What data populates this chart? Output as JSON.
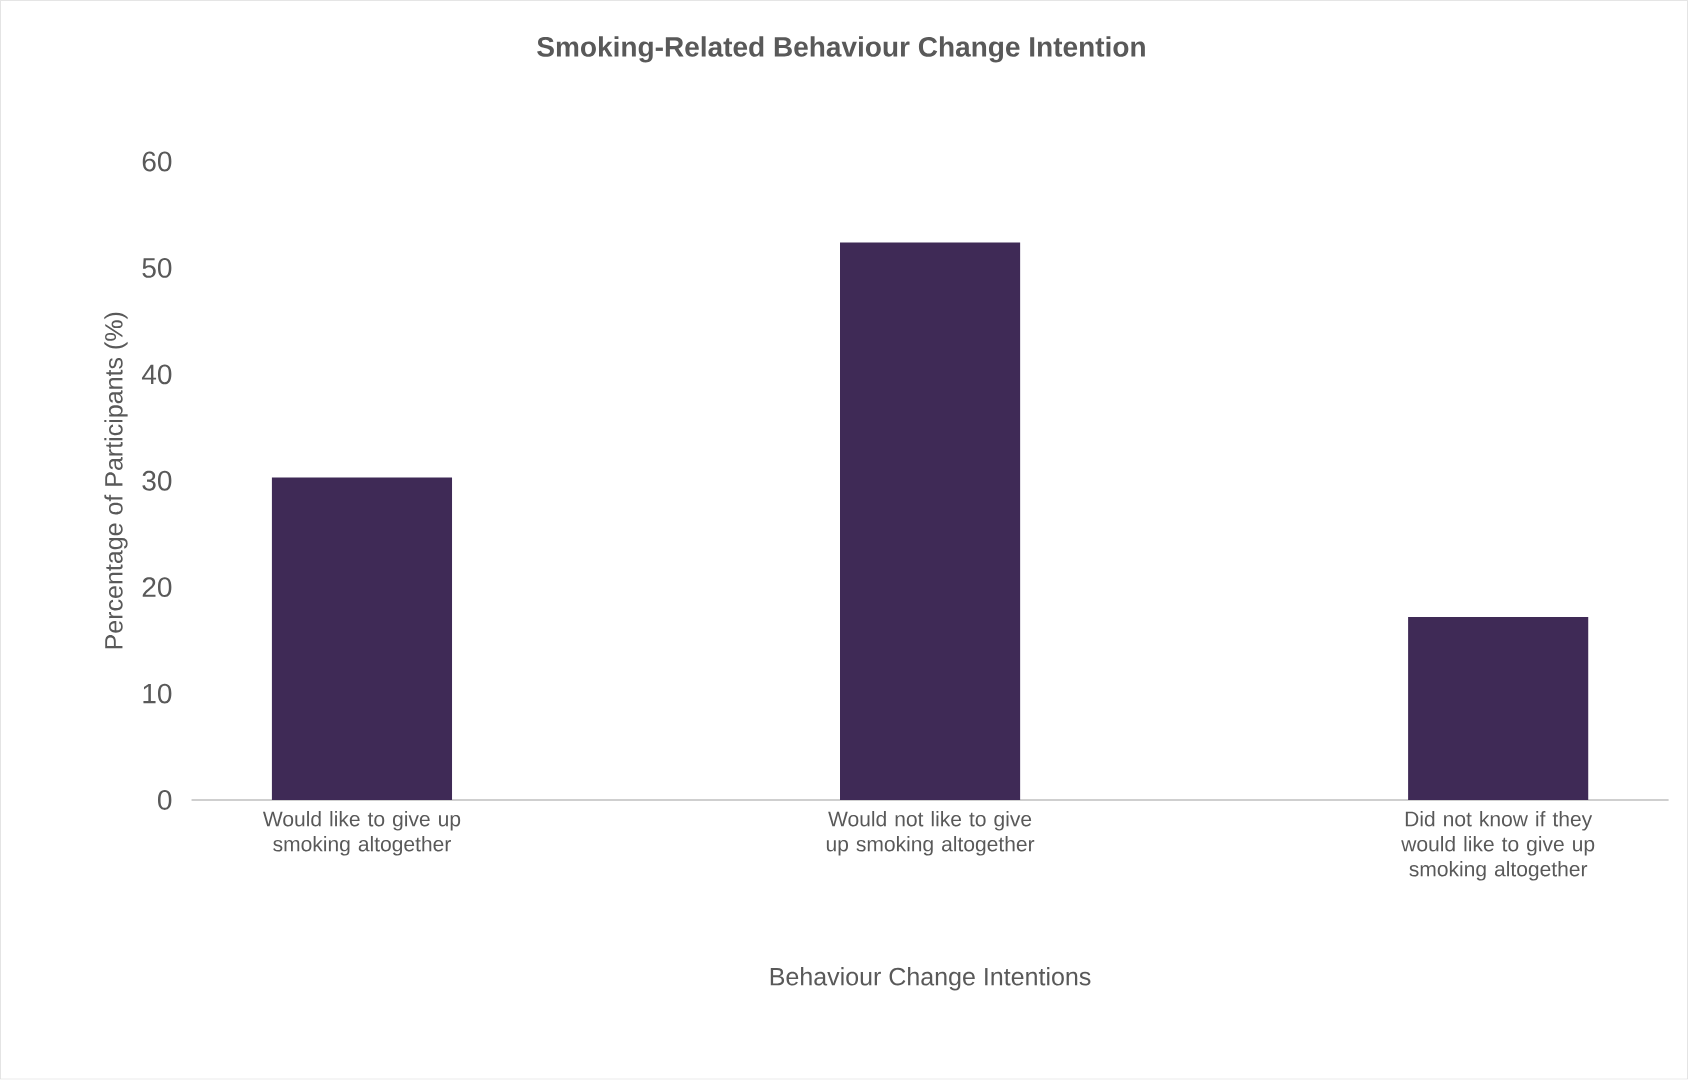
{
  "chart_data": {
    "type": "bar",
    "title": "Smoking-Related Behaviour Change Intention",
    "xlabel": "Behaviour Change Intentions",
    "ylabel": "Percentage of Participants (%)",
    "categories": [
      "Would like to give up smoking altogether",
      "Would not like to give up smoking altogether",
      "Did not know if they would like to give up smoking altogether"
    ],
    "values": [
      30.3,
      52.4,
      17.2
    ],
    "color": "#3f2a56",
    "ylim": [
      0,
      60
    ],
    "yticks": [
      0,
      10,
      20,
      30,
      40,
      50,
      60
    ]
  }
}
